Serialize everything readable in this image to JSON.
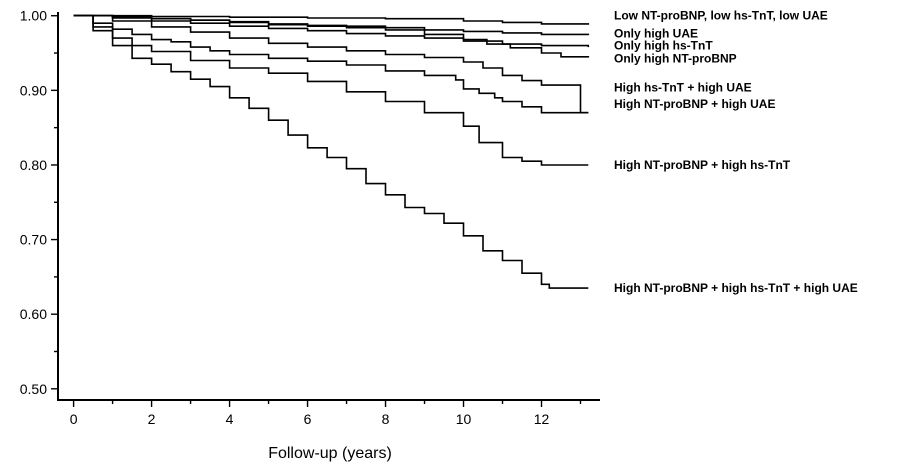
{
  "chart_data": {
    "type": "line",
    "title": "",
    "xlabel": "Follow-up (years)",
    "ylabel": "",
    "xlim": [
      -0.4,
      13.5
    ],
    "ylim": [
      0.485,
      1.005
    ],
    "xticks": [
      0,
      2,
      4,
      6,
      8,
      10,
      12
    ],
    "xticks_minor": [
      1,
      3,
      5,
      7,
      9,
      11,
      13
    ],
    "yticks": [
      0.5,
      0.6,
      0.7,
      0.8,
      0.9,
      1.0
    ],
    "yticks_minor": [
      0.55,
      0.65,
      0.75,
      0.85,
      0.95
    ],
    "ytick_labels": [
      "0.50",
      "0.60",
      "0.70",
      "0.80",
      "0.90",
      "1.00"
    ],
    "xtick_labels": [
      "0",
      "2",
      "4",
      "6",
      "8",
      "10",
      "12"
    ],
    "grid": false,
    "series": [
      {
        "name": "Low NT-proBNP, low hs-TnT, low UAE",
        "label_y": 1.0,
        "points": [
          [
            0,
            1.0
          ],
          [
            2,
            0.999
          ],
          [
            4,
            0.998
          ],
          [
            6,
            0.997
          ],
          [
            8,
            0.996
          ],
          [
            10,
            0.993
          ],
          [
            11,
            0.991
          ],
          [
            12,
            0.989
          ],
          [
            13.2,
            0.988
          ]
        ]
      },
      {
        "name": "Only high UAE",
        "label_y": 0.976,
        "points": [
          [
            0,
            1.0
          ],
          [
            1,
            0.998
          ],
          [
            2,
            0.996
          ],
          [
            3,
            0.994
          ],
          [
            4,
            0.992
          ],
          [
            5,
            0.989
          ],
          [
            6,
            0.987
          ],
          [
            7,
            0.986
          ],
          [
            8,
            0.984
          ],
          [
            9,
            0.981
          ],
          [
            10,
            0.979
          ],
          [
            11,
            0.977
          ],
          [
            12,
            0.975
          ],
          [
            13.2,
            0.974
          ]
        ]
      },
      {
        "name": "Only high hs-TnT",
        "label_y": 0.96,
        "points": [
          [
            0,
            1.0
          ],
          [
            1,
            0.997
          ],
          [
            2,
            0.993
          ],
          [
            3,
            0.99
          ],
          [
            4,
            0.986
          ],
          [
            5,
            0.983
          ],
          [
            6,
            0.98
          ],
          [
            7,
            0.976
          ],
          [
            8,
            0.973
          ],
          [
            9,
            0.97
          ],
          [
            10,
            0.966
          ],
          [
            11,
            0.962
          ],
          [
            12,
            0.96
          ],
          [
            13.2,
            0.958
          ]
        ]
      },
      {
        "name": "Only high NT-proBNP",
        "label_y": 0.943,
        "points": [
          [
            0,
            1.0
          ],
          [
            1,
            0.998
          ],
          [
            2,
            0.996
          ],
          [
            3,
            0.994
          ],
          [
            4,
            0.991
          ],
          [
            5,
            0.988
          ],
          [
            6,
            0.986
          ],
          [
            7,
            0.984
          ],
          [
            8,
            0.981
          ],
          [
            9,
            0.975
          ],
          [
            10,
            0.968
          ],
          [
            10.6,
            0.962
          ],
          [
            11.2,
            0.957
          ],
          [
            12,
            0.95
          ],
          [
            12.5,
            0.945
          ],
          [
            13.2,
            0.944
          ]
        ]
      },
      {
        "name": "High hs-TnT + high UAE",
        "label_y": 0.904,
        "points": [
          [
            0,
            1.0
          ],
          [
            1,
            0.993
          ],
          [
            2,
            0.985
          ],
          [
            3,
            0.978
          ],
          [
            4,
            0.97
          ],
          [
            5,
            0.963
          ],
          [
            6,
            0.958
          ],
          [
            7,
            0.953
          ],
          [
            8,
            0.948
          ],
          [
            9,
            0.944
          ],
          [
            10,
            0.938
          ],
          [
            10.5,
            0.93
          ],
          [
            11,
            0.92
          ],
          [
            11.5,
            0.913
          ],
          [
            12,
            0.907
          ],
          [
            12.9,
            0.907
          ],
          [
            13,
            0.87
          ],
          [
            13.2,
            0.87
          ]
        ]
      },
      {
        "name": "High NT-proBNP + high UAE",
        "label_y": 0.882,
        "points": [
          [
            0,
            1.0
          ],
          [
            0.5,
            0.99
          ],
          [
            1,
            0.982
          ],
          [
            1.5,
            0.975
          ],
          [
            2,
            0.968
          ],
          [
            2.5,
            0.965
          ],
          [
            3,
            0.958
          ],
          [
            3.5,
            0.953
          ],
          [
            4,
            0.948
          ],
          [
            5,
            0.943
          ],
          [
            6,
            0.939
          ],
          [
            7,
            0.934
          ],
          [
            8,
            0.926
          ],
          [
            9,
            0.92
          ],
          [
            9.8,
            0.914
          ],
          [
            10,
            0.902
          ],
          [
            10.4,
            0.896
          ],
          [
            10.8,
            0.89
          ],
          [
            11,
            0.885
          ],
          [
            11.5,
            0.878
          ],
          [
            12,
            0.87
          ],
          [
            13.2,
            0.87
          ]
        ]
      },
      {
        "name": "High NT-proBNP + high hs-TnT",
        "label_y": 0.8,
        "points": [
          [
            0,
            1.0
          ],
          [
            0.5,
            0.985
          ],
          [
            1,
            0.97
          ],
          [
            1.5,
            0.96
          ],
          [
            2,
            0.952
          ],
          [
            3,
            0.94
          ],
          [
            4,
            0.93
          ],
          [
            5,
            0.923
          ],
          [
            6,
            0.912
          ],
          [
            7,
            0.898
          ],
          [
            8,
            0.885
          ],
          [
            9,
            0.87
          ],
          [
            10,
            0.852
          ],
          [
            10.4,
            0.83
          ],
          [
            11,
            0.81
          ],
          [
            11.5,
            0.805
          ],
          [
            12,
            0.8
          ],
          [
            13.2,
            0.8
          ]
        ]
      },
      {
        "name": "High NT-proBNP + high hs-TnT + high UAE",
        "label_y": 0.635,
        "points": [
          [
            0,
            1.0
          ],
          [
            0.5,
            0.98
          ],
          [
            1,
            0.96
          ],
          [
            1.5,
            0.943
          ],
          [
            2,
            0.935
          ],
          [
            2.5,
            0.925
          ],
          [
            3,
            0.915
          ],
          [
            3.5,
            0.905
          ],
          [
            4,
            0.89
          ],
          [
            4.5,
            0.876
          ],
          [
            5,
            0.86
          ],
          [
            5.5,
            0.84
          ],
          [
            6,
            0.823
          ],
          [
            6.5,
            0.81
          ],
          [
            7,
            0.795
          ],
          [
            7.5,
            0.775
          ],
          [
            8,
            0.76
          ],
          [
            8.5,
            0.743
          ],
          [
            9,
            0.735
          ],
          [
            9.5,
            0.722
          ],
          [
            10,
            0.705
          ],
          [
            10.5,
            0.685
          ],
          [
            11,
            0.672
          ],
          [
            11.5,
            0.655
          ],
          [
            12,
            0.64
          ],
          [
            12.2,
            0.635
          ],
          [
            13.2,
            0.635
          ]
        ]
      }
    ]
  }
}
